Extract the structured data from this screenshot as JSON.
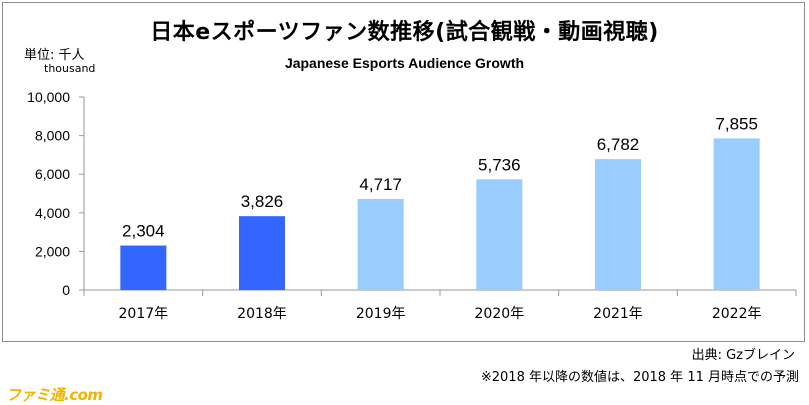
{
  "title": "日本eスポーツファン数推移(試合観戦・動画視聴)",
  "subtitle": "Japanese Esports Audience Growth",
  "unit_jp": "単位: 千人",
  "unit_en": "thousand",
  "source": "出典: Gzブレイン",
  "note": "※2018 年以降の数値は、2018 年 11 月時点での予測",
  "watermark": "ファミ通.com",
  "colors": {
    "actual": "#3366ff",
    "forecast": "#99ccff",
    "axis": "#999999"
  },
  "chart_data": {
    "type": "bar",
    "title": "日本eスポーツファン数推移(試合観戦・動画視聴)",
    "subtitle": "Japanese Esports Audience Growth",
    "ylabel": "単位: 千人 thousand",
    "xlabel": "",
    "categories": [
      "2017年",
      "2018年",
      "2019年",
      "2020年",
      "2021年",
      "2022年"
    ],
    "values": [
      2304,
      3826,
      4717,
      5736,
      6782,
      7855
    ],
    "value_labels": [
      "2,304",
      "3,826",
      "4,717",
      "5,736",
      "6,782",
      "7,855"
    ],
    "bar_colors": [
      "#3366ff",
      "#3366ff",
      "#99ccff",
      "#99ccff",
      "#99ccff",
      "#99ccff"
    ],
    "ylim": [
      0,
      10000
    ],
    "yticks": [
      0,
      2000,
      4000,
      6000,
      8000,
      10000
    ],
    "ytick_labels": [
      "0",
      "2,000",
      "4,000",
      "6,000",
      "8,000",
      "10,000"
    ],
    "grid": false,
    "legend": "none"
  }
}
